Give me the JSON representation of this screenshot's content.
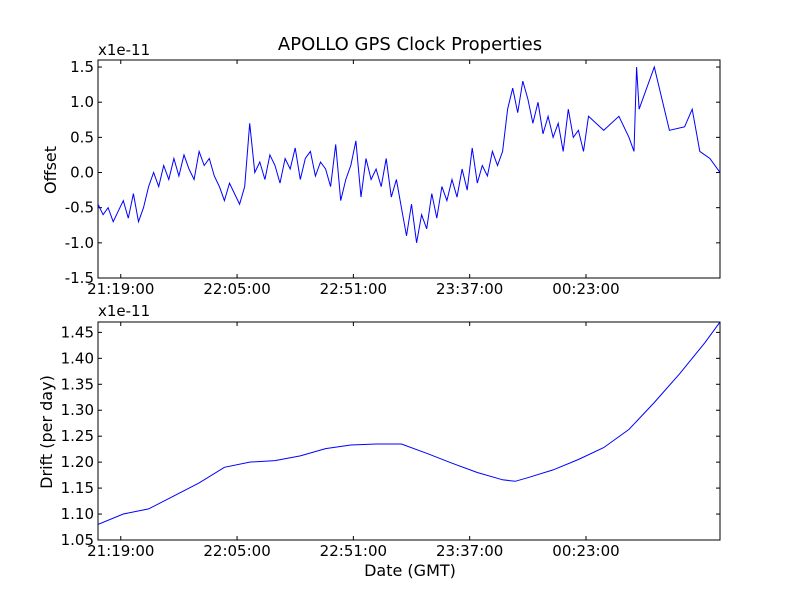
{
  "chart_data": [
    {
      "type": "line",
      "title": "APOLLO GPS Clock Properties",
      "xlabel": "",
      "ylabel": "Offset",
      "y_multiplier": "x1e-11",
      "xlim": [
        "21:10:00",
        "01:16:00"
      ],
      "ylim": [
        -1.5,
        1.6
      ],
      "x_ticks": [
        "21:19:00",
        "22:05:00",
        "22:51:00",
        "23:37:00",
        "00:23:00"
      ],
      "y_ticks": [
        "-1.5",
        "-1.0",
        "-0.5",
        "0.0",
        "0.5",
        "1.0",
        "1.5"
      ],
      "grid": false,
      "color": "#0000ff",
      "series": [
        {
          "x": [
            "21:10:00",
            "21:12:00",
            "21:14:00",
            "21:16:00",
            "21:18:00",
            "21:20:00",
            "21:22:00",
            "21:24:00",
            "21:26:00",
            "21:28:00",
            "21:30:00",
            "21:32:00",
            "21:34:00",
            "21:36:00",
            "21:38:00",
            "21:40:00",
            "21:42:00",
            "21:44:00",
            "21:46:00",
            "21:48:00",
            "21:50:00",
            "21:52:00",
            "21:54:00",
            "21:56:00",
            "21:58:00",
            "22:00:00",
            "22:02:00",
            "22:04:00",
            "22:06:00",
            "22:08:00",
            "22:10:00",
            "22:12:00",
            "22:14:00",
            "22:16:00",
            "22:18:00",
            "22:20:00",
            "22:22:00",
            "22:24:00",
            "22:26:00",
            "22:28:00",
            "22:30:00",
            "22:32:00",
            "22:34:00",
            "22:36:00",
            "22:38:00",
            "22:40:00",
            "22:42:00",
            "22:44:00",
            "22:46:00",
            "22:48:00",
            "22:50:00",
            "22:52:00",
            "22:54:00",
            "22:56:00",
            "22:58:00",
            "23:00:00",
            "23:02:00",
            "23:04:00",
            "23:06:00",
            "23:08:00",
            "23:10:00",
            "23:12:00",
            "23:14:00",
            "23:16:00",
            "23:18:00",
            "23:20:00",
            "23:22:00",
            "23:24:00",
            "23:26:00",
            "23:28:00",
            "23:30:00",
            "23:32:00",
            "23:34:00",
            "23:36:00",
            "23:38:00",
            "23:40:00",
            "23:42:00",
            "23:44:00",
            "23:46:00",
            "23:48:00",
            "23:50:00",
            "23:52:00",
            "23:54:00",
            "23:56:00",
            "23:58:00",
            "00:00:00",
            "00:02:00",
            "00:04:00",
            "00:06:00",
            "00:08:00",
            "00:10:00",
            "00:12:00",
            "00:14:00",
            "00:16:00",
            "00:18:00",
            "00:20:00",
            "00:22:00",
            "00:24:00",
            "00:30:00",
            "00:36:00",
            "00:40:00",
            "00:42:00",
            "00:43:00",
            "00:44:00",
            "00:50:00",
            "00:56:00",
            "01:02:00",
            "01:05:00",
            "01:08:00",
            "01:12:00",
            "01:16:00"
          ],
          "y": [
            -0.45,
            -0.6,
            -0.5,
            -0.7,
            -0.55,
            -0.4,
            -0.65,
            -0.3,
            -0.7,
            -0.5,
            -0.2,
            0.0,
            -0.2,
            0.1,
            -0.1,
            0.2,
            -0.05,
            0.25,
            0.05,
            -0.1,
            0.3,
            0.1,
            0.2,
            -0.05,
            -0.2,
            -0.4,
            -0.15,
            -0.3,
            -0.45,
            -0.2,
            0.7,
            0.0,
            0.15,
            -0.1,
            0.25,
            0.1,
            -0.15,
            0.2,
            0.05,
            0.35,
            -0.1,
            0.2,
            0.3,
            -0.05,
            0.15,
            0.05,
            -0.2,
            0.4,
            -0.4,
            -0.1,
            0.1,
            0.45,
            -0.35,
            0.2,
            -0.1,
            0.05,
            -0.2,
            0.2,
            -0.35,
            -0.1,
            -0.5,
            -0.9,
            -0.45,
            -1.0,
            -0.6,
            -0.8,
            -0.3,
            -0.65,
            -0.2,
            -0.4,
            -0.1,
            -0.35,
            0.05,
            -0.25,
            0.35,
            -0.15,
            0.1,
            -0.05,
            0.3,
            0.1,
            0.3,
            0.9,
            1.2,
            0.85,
            1.3,
            1.05,
            0.7,
            1.0,
            0.55,
            0.8,
            0.5,
            0.7,
            0.3,
            0.9,
            0.5,
            0.6,
            0.3,
            0.8,
            0.6,
            0.8,
            0.5,
            0.3,
            1.5,
            0.9,
            1.5,
            0.6,
            0.65,
            0.9,
            0.3,
            0.2,
            0.0
          ]
        }
      ]
    },
    {
      "type": "line",
      "title": "",
      "xlabel": "Date (GMT)",
      "ylabel": "Drift (per day)",
      "y_multiplier": "x1e-11",
      "xlim": [
        "21:10:00",
        "01:16:00"
      ],
      "ylim": [
        1.05,
        1.47
      ],
      "x_ticks": [
        "21:19:00",
        "22:05:00",
        "22:51:00",
        "23:37:00",
        "00:23:00"
      ],
      "y_ticks": [
        "1.05",
        "1.10",
        "1.15",
        "1.20",
        "1.25",
        "1.30",
        "1.35",
        "1.40",
        "1.45"
      ],
      "grid": false,
      "color": "#0000ff",
      "series": [
        {
          "x": [
            "21:10:00",
            "21:20:00",
            "21:30:00",
            "21:40:00",
            "21:50:00",
            "22:00:00",
            "22:10:00",
            "22:20:00",
            "22:30:00",
            "22:40:00",
            "22:50:00",
            "23:00:00",
            "23:10:00",
            "23:20:00",
            "23:30:00",
            "23:40:00",
            "23:50:00",
            "23:55:00",
            "24:00:00",
            "24:10:00",
            "24:20:00",
            "24:30:00",
            "24:40:00",
            "24:50:00",
            "25:00:00",
            "25:10:00",
            "25:16:00"
          ],
          "y": [
            1.08,
            1.1,
            1.11,
            1.135,
            1.16,
            1.19,
            1.2,
            1.203,
            1.212,
            1.226,
            1.233,
            1.235,
            1.235,
            1.217,
            1.198,
            1.18,
            1.166,
            1.163,
            1.17,
            1.185,
            1.205,
            1.228,
            1.263,
            1.315,
            1.37,
            1.43,
            1.47
          ]
        }
      ]
    }
  ]
}
